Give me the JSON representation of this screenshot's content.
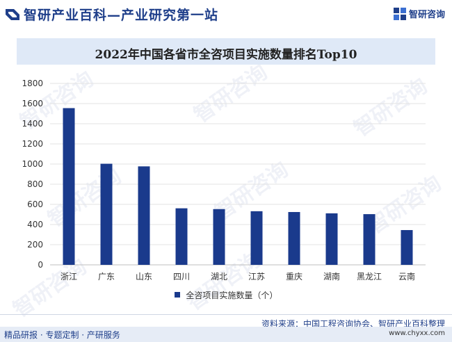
{
  "header": {
    "site_title": "智研产业百科—产业研究第一站",
    "logo_text": "智研咨询"
  },
  "watermark": "智研咨询",
  "chart_data": {
    "type": "bar",
    "title": "2022年中国各省市全咨项目实施数量排名Top10",
    "categories": [
      "浙江",
      "广东",
      "山东",
      "四川",
      "湖北",
      "江苏",
      "重庆",
      "湖南",
      "黑龙江",
      "云南"
    ],
    "series": [
      {
        "name": "全咨项目实施数量（个）",
        "values": [
          1555,
          1003,
          977,
          561,
          553,
          532,
          524,
          511,
          503,
          345
        ],
        "color": "#1a3a8c"
      }
    ],
    "ylim": [
      0,
      1800
    ],
    "yticks": [
      0,
      200,
      400,
      600,
      800,
      1000,
      1200,
      1400,
      1600,
      1800
    ],
    "xlabel": "",
    "ylabel": "",
    "grid": true,
    "legend_position": "bottom"
  },
  "footer": {
    "source": "资料来源：中国工程咨询协会、智研产业百科整理",
    "left_text": "精品研报 · 专题定制 · 产研服务",
    "url": "www.chyxx.com"
  }
}
